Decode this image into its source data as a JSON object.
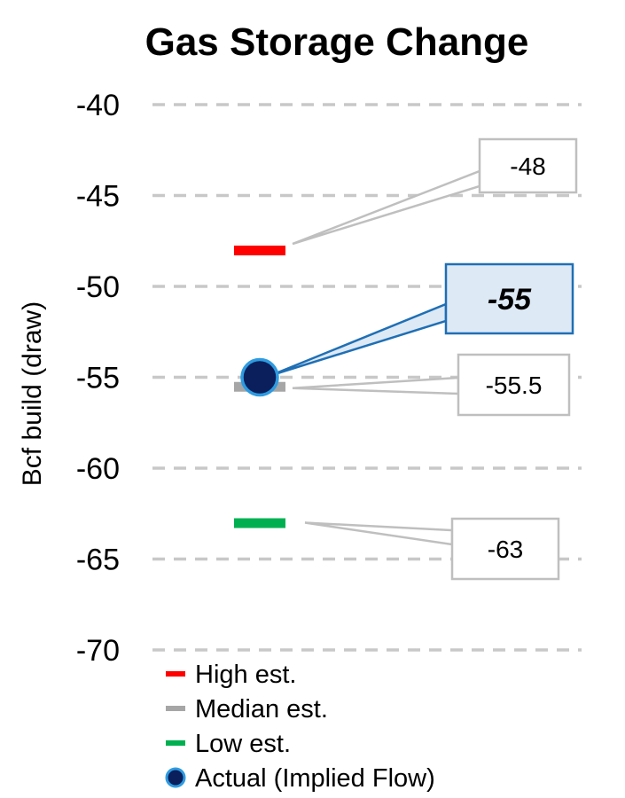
{
  "chart_data": {
    "type": "scatter",
    "title": "Gas Storage Change",
    "ylabel": "Bcf build (draw)",
    "xlabel": "",
    "ylim": [
      -70,
      -40
    ],
    "yticks": [
      -40,
      -45,
      -50,
      -55,
      -60,
      -65,
      -70
    ],
    "ytick_labels": [
      "-40",
      "-45",
      "-50",
      "-55",
      "-60",
      "-65",
      "-70"
    ],
    "grid": true,
    "legend_position": "bottom-left",
    "series": [
      {
        "name": "High est.",
        "marker": "dash",
        "value": -48,
        "label": "-48",
        "color": "#ff0000"
      },
      {
        "name": "Median est.",
        "marker": "dash",
        "value": -55.5,
        "label": "-55.5",
        "color": "#a6a6a6"
      },
      {
        "name": "Low est.",
        "marker": "dash",
        "value": -63,
        "label": "-63",
        "color": "#00b050"
      },
      {
        "name": "Actual (Implied Flow)",
        "marker": "circle",
        "value": -55,
        "label": "-55",
        "color": "#0b1f5c",
        "edge_color": "#2e9be0"
      }
    ]
  },
  "colors": {
    "grid": "#c8c8c8",
    "callout_border": "#bfbfbf",
    "actual_callout_border": "#1f6fb5",
    "actual_callout_fill": "#dde9f5",
    "actual_leader": "#1f6fb5"
  }
}
